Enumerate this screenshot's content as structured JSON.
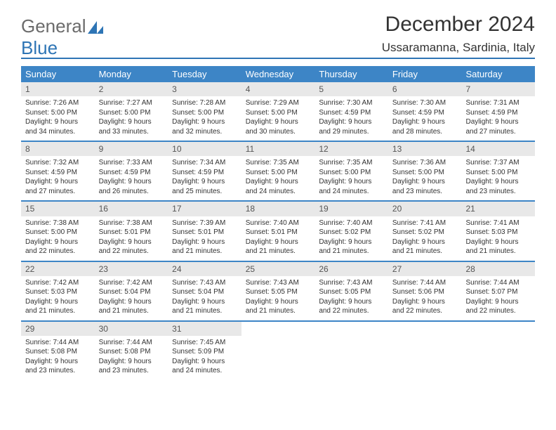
{
  "logo": {
    "text1": "General",
    "text2": "Blue"
  },
  "title": "December 2024",
  "location": "Ussaramanna, Sardinia, Italy",
  "colors": {
    "accent": "#3d85c6",
    "accent_dark": "#2e75b5",
    "daynum_bg": "#e8e8e8",
    "text": "#333333",
    "logo_gray": "#6b6b6b"
  },
  "days_of_week": [
    "Sunday",
    "Monday",
    "Tuesday",
    "Wednesday",
    "Thursday",
    "Friday",
    "Saturday"
  ],
  "weeks": [
    [
      {
        "n": "1",
        "sr": "Sunrise: 7:26 AM",
        "ss": "Sunset: 5:00 PM",
        "dl": "Daylight: 9 hours and 34 minutes."
      },
      {
        "n": "2",
        "sr": "Sunrise: 7:27 AM",
        "ss": "Sunset: 5:00 PM",
        "dl": "Daylight: 9 hours and 33 minutes."
      },
      {
        "n": "3",
        "sr": "Sunrise: 7:28 AM",
        "ss": "Sunset: 5:00 PM",
        "dl": "Daylight: 9 hours and 32 minutes."
      },
      {
        "n": "4",
        "sr": "Sunrise: 7:29 AM",
        "ss": "Sunset: 5:00 PM",
        "dl": "Daylight: 9 hours and 30 minutes."
      },
      {
        "n": "5",
        "sr": "Sunrise: 7:30 AM",
        "ss": "Sunset: 4:59 PM",
        "dl": "Daylight: 9 hours and 29 minutes."
      },
      {
        "n": "6",
        "sr": "Sunrise: 7:30 AM",
        "ss": "Sunset: 4:59 PM",
        "dl": "Daylight: 9 hours and 28 minutes."
      },
      {
        "n": "7",
        "sr": "Sunrise: 7:31 AM",
        "ss": "Sunset: 4:59 PM",
        "dl": "Daylight: 9 hours and 27 minutes."
      }
    ],
    [
      {
        "n": "8",
        "sr": "Sunrise: 7:32 AM",
        "ss": "Sunset: 4:59 PM",
        "dl": "Daylight: 9 hours and 27 minutes."
      },
      {
        "n": "9",
        "sr": "Sunrise: 7:33 AM",
        "ss": "Sunset: 4:59 PM",
        "dl": "Daylight: 9 hours and 26 minutes."
      },
      {
        "n": "10",
        "sr": "Sunrise: 7:34 AM",
        "ss": "Sunset: 4:59 PM",
        "dl": "Daylight: 9 hours and 25 minutes."
      },
      {
        "n": "11",
        "sr": "Sunrise: 7:35 AM",
        "ss": "Sunset: 5:00 PM",
        "dl": "Daylight: 9 hours and 24 minutes."
      },
      {
        "n": "12",
        "sr": "Sunrise: 7:35 AM",
        "ss": "Sunset: 5:00 PM",
        "dl": "Daylight: 9 hours and 24 minutes."
      },
      {
        "n": "13",
        "sr": "Sunrise: 7:36 AM",
        "ss": "Sunset: 5:00 PM",
        "dl": "Daylight: 9 hours and 23 minutes."
      },
      {
        "n": "14",
        "sr": "Sunrise: 7:37 AM",
        "ss": "Sunset: 5:00 PM",
        "dl": "Daylight: 9 hours and 23 minutes."
      }
    ],
    [
      {
        "n": "15",
        "sr": "Sunrise: 7:38 AM",
        "ss": "Sunset: 5:00 PM",
        "dl": "Daylight: 9 hours and 22 minutes."
      },
      {
        "n": "16",
        "sr": "Sunrise: 7:38 AM",
        "ss": "Sunset: 5:01 PM",
        "dl": "Daylight: 9 hours and 22 minutes."
      },
      {
        "n": "17",
        "sr": "Sunrise: 7:39 AM",
        "ss": "Sunset: 5:01 PM",
        "dl": "Daylight: 9 hours and 21 minutes."
      },
      {
        "n": "18",
        "sr": "Sunrise: 7:40 AM",
        "ss": "Sunset: 5:01 PM",
        "dl": "Daylight: 9 hours and 21 minutes."
      },
      {
        "n": "19",
        "sr": "Sunrise: 7:40 AM",
        "ss": "Sunset: 5:02 PM",
        "dl": "Daylight: 9 hours and 21 minutes."
      },
      {
        "n": "20",
        "sr": "Sunrise: 7:41 AM",
        "ss": "Sunset: 5:02 PM",
        "dl": "Daylight: 9 hours and 21 minutes."
      },
      {
        "n": "21",
        "sr": "Sunrise: 7:41 AM",
        "ss": "Sunset: 5:03 PM",
        "dl": "Daylight: 9 hours and 21 minutes."
      }
    ],
    [
      {
        "n": "22",
        "sr": "Sunrise: 7:42 AM",
        "ss": "Sunset: 5:03 PM",
        "dl": "Daylight: 9 hours and 21 minutes."
      },
      {
        "n": "23",
        "sr": "Sunrise: 7:42 AM",
        "ss": "Sunset: 5:04 PM",
        "dl": "Daylight: 9 hours and 21 minutes."
      },
      {
        "n": "24",
        "sr": "Sunrise: 7:43 AM",
        "ss": "Sunset: 5:04 PM",
        "dl": "Daylight: 9 hours and 21 minutes."
      },
      {
        "n": "25",
        "sr": "Sunrise: 7:43 AM",
        "ss": "Sunset: 5:05 PM",
        "dl": "Daylight: 9 hours and 21 minutes."
      },
      {
        "n": "26",
        "sr": "Sunrise: 7:43 AM",
        "ss": "Sunset: 5:05 PM",
        "dl": "Daylight: 9 hours and 22 minutes."
      },
      {
        "n": "27",
        "sr": "Sunrise: 7:44 AM",
        "ss": "Sunset: 5:06 PM",
        "dl": "Daylight: 9 hours and 22 minutes."
      },
      {
        "n": "28",
        "sr": "Sunrise: 7:44 AM",
        "ss": "Sunset: 5:07 PM",
        "dl": "Daylight: 9 hours and 22 minutes."
      }
    ],
    [
      {
        "n": "29",
        "sr": "Sunrise: 7:44 AM",
        "ss": "Sunset: 5:08 PM",
        "dl": "Daylight: 9 hours and 23 minutes."
      },
      {
        "n": "30",
        "sr": "Sunrise: 7:44 AM",
        "ss": "Sunset: 5:08 PM",
        "dl": "Daylight: 9 hours and 23 minutes."
      },
      {
        "n": "31",
        "sr": "Sunrise: 7:45 AM",
        "ss": "Sunset: 5:09 PM",
        "dl": "Daylight: 9 hours and 24 minutes."
      },
      {
        "empty": true
      },
      {
        "empty": true
      },
      {
        "empty": true
      },
      {
        "empty": true
      }
    ]
  ]
}
